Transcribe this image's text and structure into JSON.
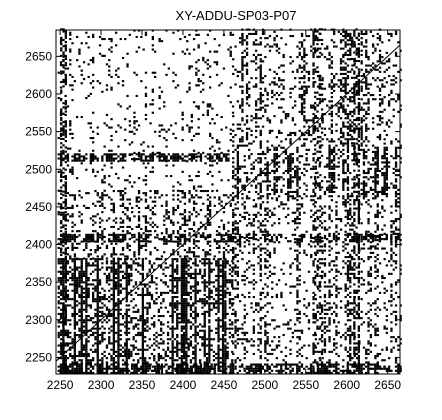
{
  "chart_data": {
    "type": "heatmap",
    "subtype": "binary-recurrence-plot",
    "title": "XY-ADDU-SP03-P07",
    "xlabel": "",
    "ylabel": "",
    "xlim": [
      2245,
      2665
    ],
    "ylim": [
      2228,
      2685
    ],
    "x_ticks": [
      2250,
      2300,
      2350,
      2400,
      2450,
      2500,
      2550,
      2600,
      2650
    ],
    "y_ticks": [
      2250,
      2300,
      2350,
      2400,
      2450,
      2500,
      2550,
      2600,
      2650
    ],
    "colors": {
      "marker": "#000000",
      "background": "#ffffff",
      "axis": "#000000"
    },
    "grid": false,
    "legend": "none",
    "recurrent_regions": [
      {
        "x": [
          2247,
          2330
        ],
        "y": [
          2228,
          2380
        ],
        "density": 0.55
      },
      {
        "x": [
          2330,
          2460
        ],
        "y": [
          2228,
          2380
        ],
        "density": 0.42
      },
      {
        "x": [
          2247,
          2460
        ],
        "y": [
          2380,
          2470
        ],
        "density": 0.22
      },
      {
        "x": [
          2247,
          2460
        ],
        "y": [
          2470,
          2685
        ],
        "density": 0.08
      },
      {
        "x": [
          2460,
          2665
        ],
        "y": [
          2228,
          2460
        ],
        "density": 0.18
      },
      {
        "x": [
          2460,
          2665
        ],
        "y": [
          2460,
          2530
        ],
        "density": 0.32
      },
      {
        "x": [
          2460,
          2665
        ],
        "y": [
          2530,
          2685
        ],
        "density": 0.22
      }
    ],
    "bands": [
      {
        "axis": "y",
        "range": [
          2510,
          2520
        ],
        "x": [
          2247,
          2455
        ],
        "density": 0.7
      },
      {
        "axis": "y",
        "range": [
          2403,
          2412
        ],
        "x": [
          2247,
          2665
        ],
        "density": 0.45
      },
      {
        "axis": "y",
        "range": [
          2228,
          2240
        ],
        "x": [
          2247,
          2665
        ],
        "density": 0.45
      },
      {
        "axis": "x",
        "range": [
          2250,
          2258
        ],
        "y": [
          2228,
          2685
        ],
        "density": 0.6
      },
      {
        "axis": "x",
        "range": [
          2560,
          2570
        ],
        "y": [
          2228,
          2685
        ],
        "density": 0.35
      },
      {
        "axis": "x",
        "range": [
          2605,
          2615
        ],
        "y": [
          2228,
          2685
        ],
        "density": 0.3
      }
    ]
  }
}
